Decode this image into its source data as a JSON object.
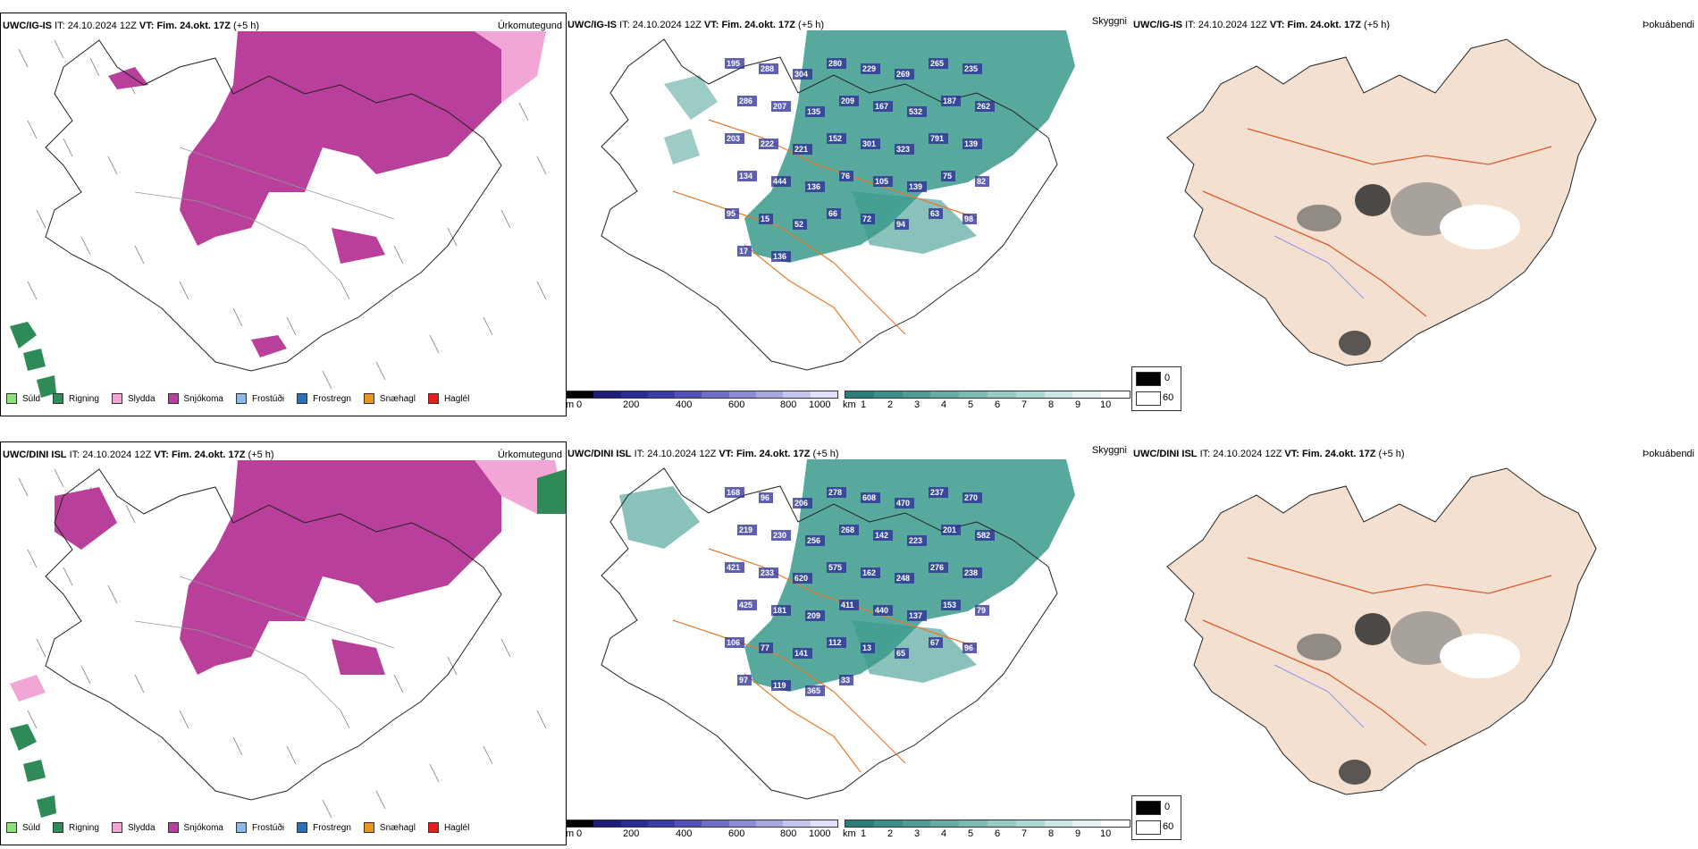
{
  "rows": [
    {
      "model": "UWC/IG-IS",
      "it_label": "IT:",
      "it_value": "24.10.2024 12Z",
      "vt_label": "VT:",
      "vt_value": "Fim. 24.okt. 17Z",
      "lead": "(+5 h)",
      "precip_title": "Úrkomutegund",
      "vis_title": "Skyggni",
      "fog_title": "Þokuábendi",
      "vis_labels": [
        "195",
        "288",
        "304",
        "280",
        "229",
        "269",
        "265",
        "235",
        "286",
        "207",
        "135",
        "209",
        "167",
        "532",
        "187",
        "262",
        "203",
        "222",
        "221",
        "152",
        "301",
        "323",
        "791",
        "139",
        "134",
        "444",
        "136",
        "76",
        "105",
        "139",
        "75",
        "82",
        "95",
        "15",
        "52",
        "66",
        "72",
        "94",
        "63",
        "98",
        "17",
        "136"
      ]
    },
    {
      "model": "UWC/DINI ISL",
      "it_label": "IT:",
      "it_value": "24.10.2024 12Z",
      "vt_label": "VT:",
      "vt_value": "Fim. 24.okt. 17Z",
      "lead": "(+5 h)",
      "precip_title": "Úrkomutegund",
      "vis_title": "Skyggni",
      "fog_title": "Þokuábendi",
      "vis_labels": [
        "168",
        "96",
        "206",
        "278",
        "608",
        "470",
        "237",
        "270",
        "219",
        "230",
        "256",
        "268",
        "142",
        "223",
        "201",
        "582",
        "421",
        "233",
        "620",
        "575",
        "162",
        "248",
        "276",
        "238",
        "425",
        "181",
        "209",
        "411",
        "440",
        "137",
        "153",
        "79",
        "106",
        "77",
        "141",
        "112",
        "13",
        "65",
        "67",
        "96",
        "97",
        "119",
        "365",
        "33"
      ]
    }
  ],
  "precip_legend": [
    {
      "label": "Súld",
      "color": "#8ee07a"
    },
    {
      "label": "Rigning",
      "color": "#2e8b57"
    },
    {
      "label": "Slydda",
      "color": "#f2a6d6"
    },
    {
      "label": "Snjókoma",
      "color": "#b8409a"
    },
    {
      "label": "Frostúði",
      "color": "#8fb8e8"
    },
    {
      "label": "Frostregn",
      "color": "#2a6fc0"
    },
    {
      "label": "Snæhagl",
      "color": "#e8961e"
    },
    {
      "label": "Haglél",
      "color": "#e81e1e"
    }
  ],
  "height_bar": {
    "unit": "m",
    "ticks": [
      "0",
      "200",
      "400",
      "600",
      "800",
      "1000"
    ]
  },
  "vis_bar": {
    "unit": "km",
    "ticks": [
      "1",
      "2",
      "3",
      "4",
      "5",
      "6",
      "7",
      "8",
      "9",
      "10"
    ]
  },
  "fog_legend": {
    "values": [
      "0",
      "60"
    ]
  }
}
